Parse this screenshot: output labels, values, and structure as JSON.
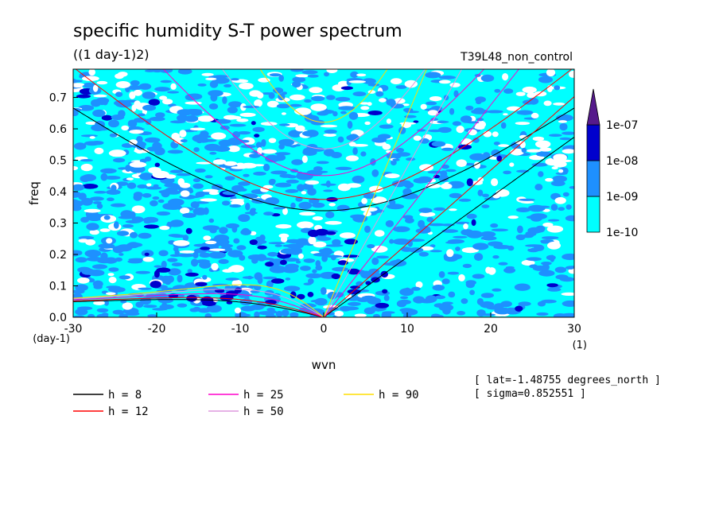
{
  "chart_data": {
    "type": "heatmap",
    "title": "specific humidity S-T power spectrum",
    "subtitle": "((1 day-1)2)",
    "run_label": "T39L48_non_control",
    "xlabel": "wvn",
    "ylabel": "freq",
    "x_unit": "(1)",
    "y_unit": "(day-1)",
    "xlim": [
      -30,
      30
    ],
    "ylim": [
      0,
      0.79
    ],
    "x_ticks": [
      -30,
      -20,
      -10,
      0,
      10,
      20,
      30
    ],
    "y_ticks": [
      0.0,
      0.1,
      0.2,
      0.3,
      0.4,
      0.5,
      0.6,
      0.7
    ],
    "y_tick_labels": [
      "0.0",
      "0.1",
      "0.2",
      "0.3",
      "0.4",
      "0.5",
      "0.6",
      "0.7"
    ],
    "colorbar": {
      "levels": [
        "1e-10",
        "1e-09",
        "1e-08",
        "1e-07"
      ],
      "colors": [
        "#00ffff",
        "#1e90ff",
        "#0000cd",
        "#551a8b"
      ]
    },
    "background_color": "#ffffff",
    "dispersion_curves": [
      {
        "name": "h =  8",
        "h": 8,
        "color": "#000000"
      },
      {
        "name": "h = 12",
        "h": 12,
        "color": "#ff0000"
      },
      {
        "name": "h = 25",
        "h": 25,
        "color": "#ff00cc"
      },
      {
        "name": "h = 50",
        "h": 50,
        "color": "#dd99dd"
      },
      {
        "name": "h = 90",
        "h": 90,
        "color": "#ffdd00"
      }
    ],
    "annotations": [
      "[ lat=-1.48755 degrees_north ]",
      "[ sigma=0.852551 ]"
    ]
  }
}
